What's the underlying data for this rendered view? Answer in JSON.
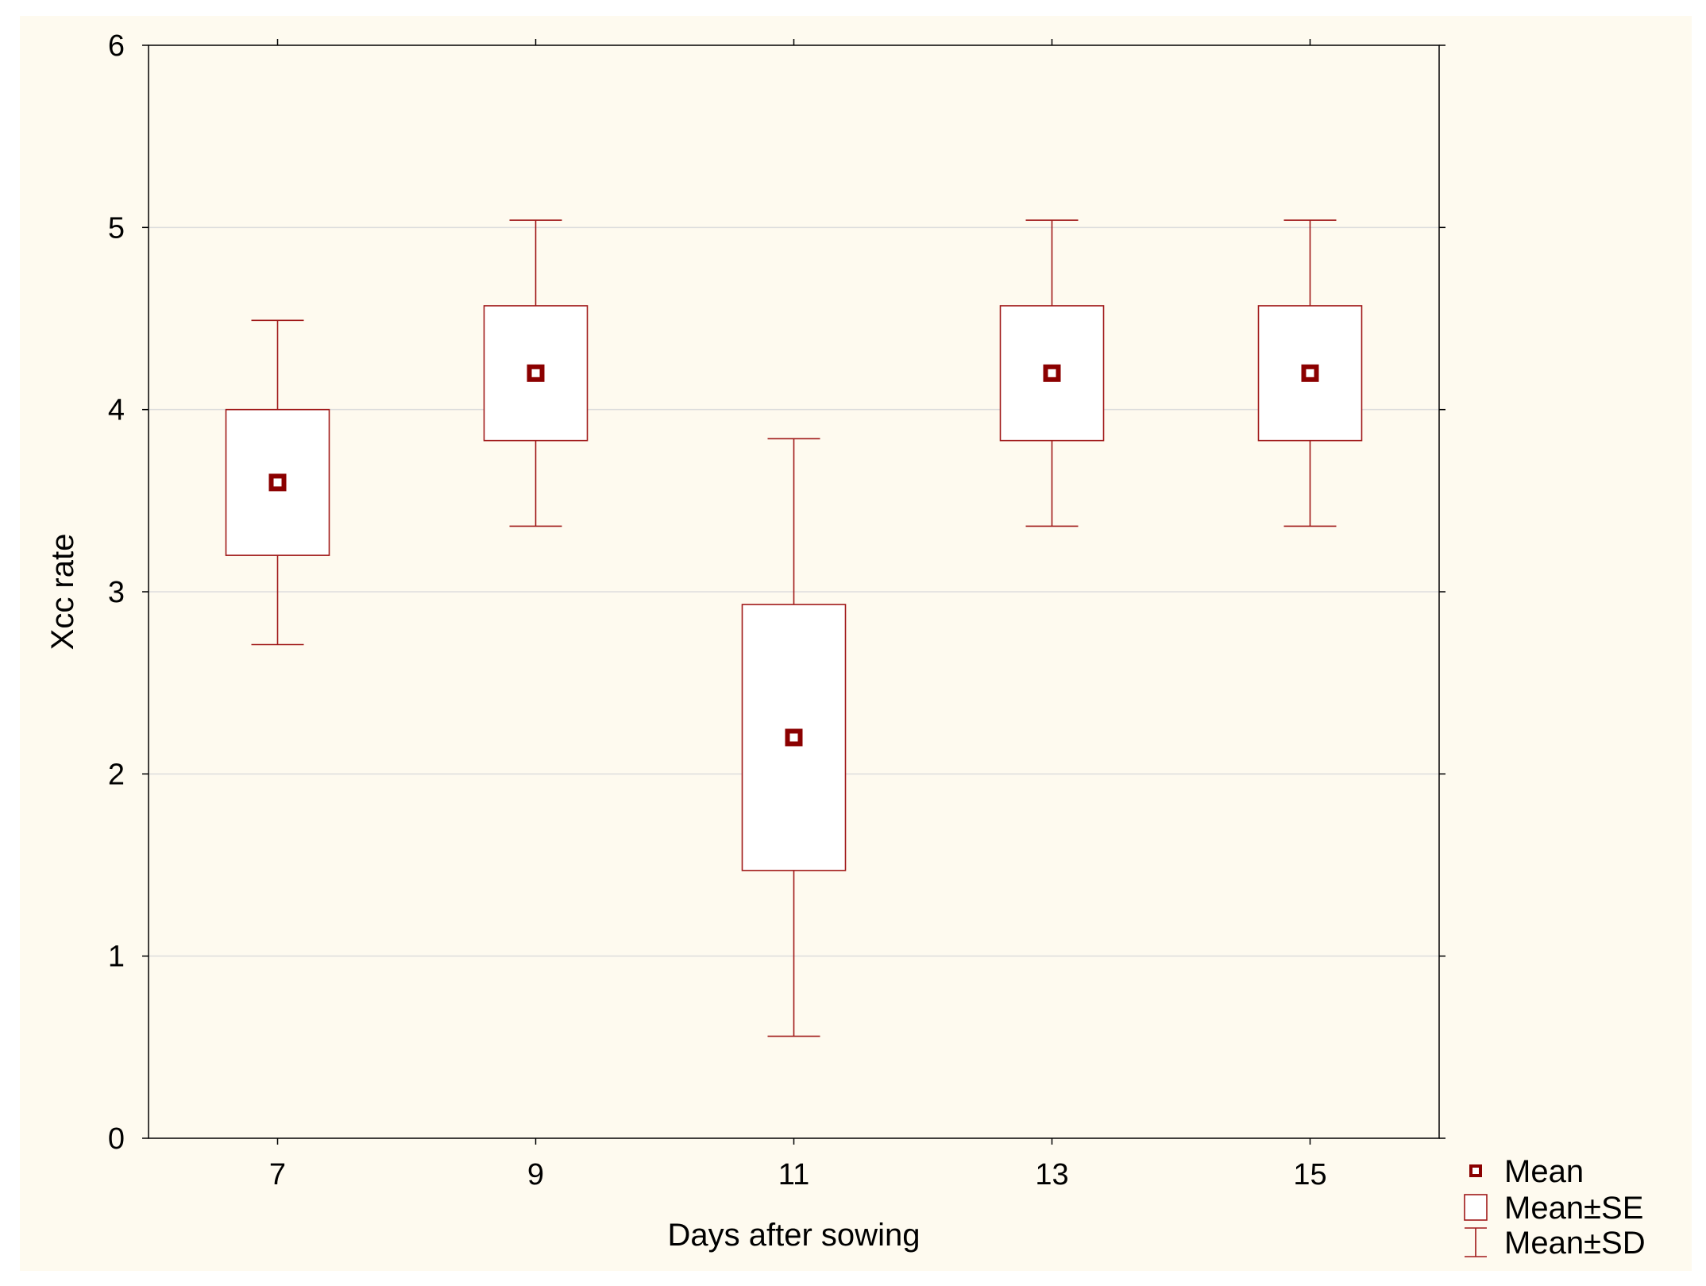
{
  "chart_data": {
    "type": "box",
    "xlabel": "Days after sowing",
    "ylabel": "Xcc rate",
    "ylim": [
      0,
      6
    ],
    "yticks": [
      0,
      1,
      2,
      3,
      4,
      5,
      6
    ],
    "xlim": [
      6,
      16
    ],
    "grid": "horizontal",
    "categories": [
      "7",
      "9",
      "11",
      "13",
      "15"
    ],
    "x": [
      7,
      9,
      11,
      13,
      15
    ],
    "mean": [
      3.6,
      4.2,
      2.2,
      4.2,
      4.2
    ],
    "se_low": [
      3.2,
      3.83,
      1.47,
      3.83,
      3.83
    ],
    "se_high": [
      4.0,
      4.57,
      2.93,
      4.57,
      4.57
    ],
    "sd_low": [
      2.71,
      3.36,
      0.56,
      3.36,
      3.36
    ],
    "sd_high": [
      4.49,
      5.04,
      3.84,
      5.04,
      5.04
    ],
    "legend": [
      {
        "symbol": "mean",
        "label": "Mean"
      },
      {
        "symbol": "se-box",
        "label": "Mean±SE"
      },
      {
        "symbol": "sd-whisker",
        "label": "Mean±SD"
      }
    ],
    "colors": {
      "series": "#a01818",
      "mean_fill": "#8b0000",
      "grid": "#dddddd",
      "axis": "#000000"
    }
  }
}
